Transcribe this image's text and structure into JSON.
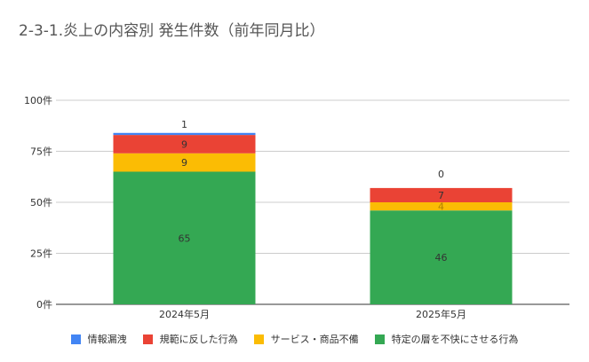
{
  "chart_data": {
    "type": "bar",
    "stacked": true,
    "title": "2-3-1.炎上の内容別 発生件数（前年同月比）",
    "categories": [
      "2024年5月",
      "2025年5月"
    ],
    "series": [
      {
        "name": "特定の層を不快にさせる行為",
        "color": "#34a853",
        "values": [
          65,
          46
        ]
      },
      {
        "name": "サービス・商品不備",
        "color": "#fbbc04",
        "values": [
          9,
          4
        ]
      },
      {
        "name": "規範に反した行為",
        "color": "#ea4335",
        "values": [
          9,
          7
        ]
      },
      {
        "name": "情報漏洩",
        "color": "#4285f4",
        "values": [
          1,
          0
        ]
      }
    ],
    "legend_order": [
      3,
      2,
      1,
      0
    ],
    "yticks": [
      "0件",
      "25件",
      "50件",
      "75件",
      "100件"
    ],
    "ylim": [
      0,
      100
    ],
    "grid": true,
    "legend_position": "bottom"
  }
}
